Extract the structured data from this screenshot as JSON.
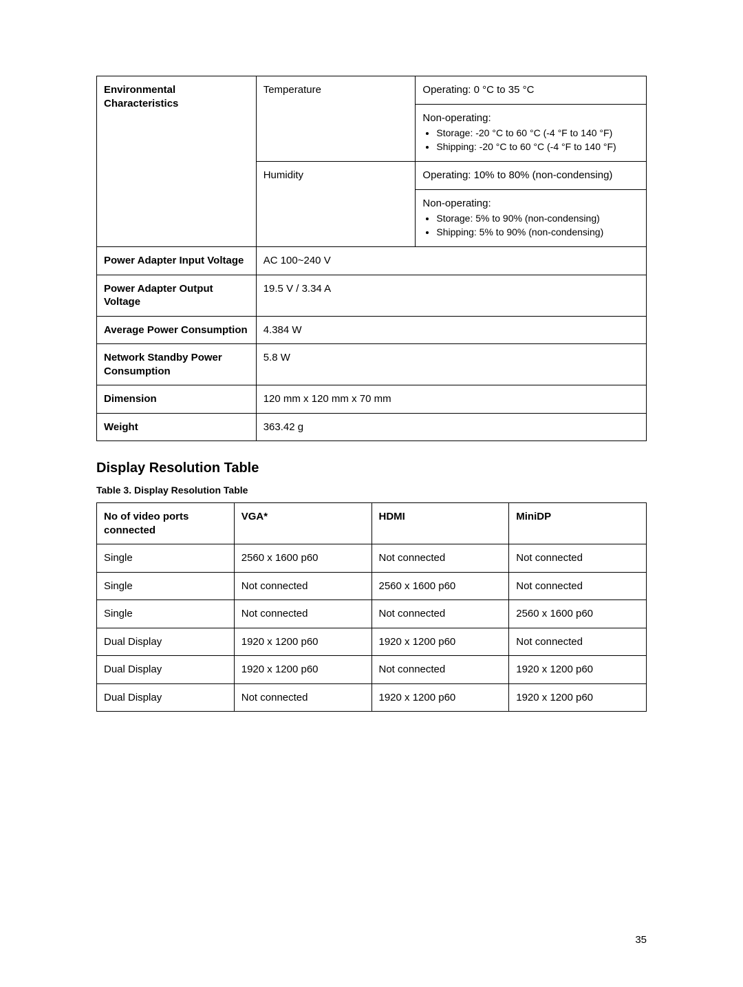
{
  "specs_table": {
    "rows": [
      {
        "label": "Environmental Characteristics",
        "sub": [
          {
            "name": "Temperature",
            "value": "Operating: 0 °C to 35 °C",
            "extra": {
              "lead": "Non-operating:",
              "items": [
                "Storage: -20 °C to 60 °C (-4 °F to 140 °F)",
                "Shipping: -20 °C to 60 °C (-4 °F to 140 °F)"
              ]
            }
          },
          {
            "name": "Humidity",
            "value": "Operating: 10% to 80% (non-condensing)",
            "extra": {
              "lead": "Non-operating:",
              "items": [
                "Storage: 5% to 90% (non-condensing)",
                "Shipping: 5% to 90% (non-condensing)"
              ]
            }
          }
        ]
      },
      {
        "label": "Power Adapter Input Voltage",
        "value": "AC 100~240 V"
      },
      {
        "label": "Power Adapter Output Voltage",
        "value": "19.5 V / 3.34 A"
      },
      {
        "label": "Average Power Consumption",
        "value": "4.384 W"
      },
      {
        "label": "Network Standby Power Consumption",
        "value": "5.8 W"
      },
      {
        "label": "Dimension",
        "value": "120 mm x 120 mm x 70 mm"
      },
      {
        "label": "Weight",
        "value": "363.42 g"
      }
    ]
  },
  "section_title": "Display Resolution Table",
  "table_caption": "Table 3. Display Resolution Table",
  "resolution_table": {
    "headers": [
      "No of video ports connected",
      "VGA*",
      "HDMI",
      "MiniDP"
    ],
    "rows": [
      [
        "Single",
        "2560 x 1600 p60",
        "Not connected",
        "Not connected"
      ],
      [
        "Single",
        "Not connected",
        "2560 x 1600 p60",
        "Not connected"
      ],
      [
        "Single",
        "Not connected",
        "Not connected",
        "2560 x 1600 p60"
      ],
      [
        "Dual Display",
        "1920 x 1200 p60",
        "1920 x 1200 p60",
        "Not connected"
      ],
      [
        "Dual Display",
        "1920 x 1200 p60",
        "Not connected",
        "1920 x 1200 p60"
      ],
      [
        "Dual Display",
        "Not connected",
        "1920 x 1200 p60",
        "1920 x 1200 p60"
      ]
    ]
  },
  "page_number": "35"
}
